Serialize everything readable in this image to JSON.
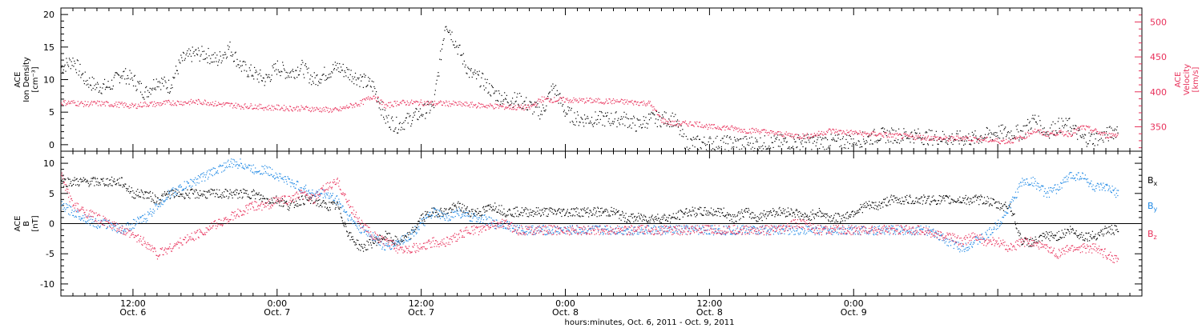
{
  "chart_data": [
    {
      "type": "scatter",
      "panel": "top",
      "ylabel_left": [
        "ACE",
        "Ion Density",
        "[cm⁻³]"
      ],
      "ylabel_right": [
        "ACE",
        "Velocity",
        "[km/s]"
      ],
      "ylim_left": [
        -1,
        21
      ],
      "ylim_right": [
        315,
        520
      ],
      "yticks_left": [
        0,
        5,
        10,
        15,
        20
      ],
      "yticks_right": [
        350,
        400,
        450,
        500
      ],
      "colors": {
        "density": "#000000",
        "velocity": "#e8305a"
      },
      "series": [
        {
          "axis": "left",
          "x_hours": [
            0,
            1,
            2,
            3,
            4,
            5,
            6,
            7,
            8,
            9,
            10,
            11,
            12,
            13,
            14,
            15,
            16,
            17,
            18,
            19,
            20,
            21,
            22,
            23,
            24,
            25,
            26,
            27,
            28,
            29,
            30,
            31,
            32,
            33,
            34,
            35,
            36,
            37,
            38,
            39,
            40,
            41,
            42,
            43,
            44,
            45,
            46,
            47,
            48,
            49,
            50,
            51,
            52,
            53,
            54,
            55,
            56,
            57,
            58,
            59,
            60,
            61,
            62,
            63,
            64,
            65,
            66,
            67,
            68,
            69,
            70,
            71,
            72,
            73,
            74,
            75,
            76,
            77,
            78,
            79,
            80,
            81,
            82,
            83,
            84,
            85,
            86,
            87,
            88
          ],
          "values": [
            12,
            13,
            10,
            9,
            9,
            11,
            10,
            8,
            10,
            9,
            13,
            14,
            14,
            13,
            15,
            12,
            11,
            10,
            12,
            11,
            12,
            10,
            11,
            12,
            11,
            10,
            9,
            4,
            3,
            4,
            5,
            6,
            19,
            15,
            11,
            10,
            8,
            7,
            7,
            6,
            5,
            9,
            5,
            4,
            4,
            4,
            4,
            4,
            3,
            4,
            4,
            4,
            0.3,
            0.3,
            0.3,
            0.3,
            0.3,
            0.3,
            0.3,
            0.3,
            0.5,
            0.5,
            0.5,
            0.5,
            0.5,
            0.5,
            0.8,
            0.9,
            1.5,
            1.5,
            1.5,
            1.5,
            1.2,
            1.2,
            1.0,
            1.0,
            1.0,
            1.5,
            2.0,
            1.8,
            2.0,
            4.0,
            2.0,
            3.0,
            3.0,
            1.0,
            1.0,
            1.5,
            2.5
          ]
        },
        {
          "axis": "right",
          "x_hours": [
            0,
            1,
            2,
            3,
            4,
            5,
            6,
            7,
            8,
            9,
            10,
            11,
            12,
            13,
            14,
            15,
            16,
            17,
            18,
            19,
            20,
            21,
            22,
            23,
            24,
            25,
            26,
            27,
            28,
            29,
            30,
            31,
            32,
            33,
            34,
            35,
            36,
            37,
            38,
            39,
            40,
            41,
            42,
            43,
            44,
            45,
            46,
            47,
            48,
            49,
            50,
            51,
            52,
            53,
            54,
            55,
            56,
            57,
            58,
            59,
            60,
            61,
            62,
            63,
            64,
            65,
            66,
            67,
            68,
            69,
            70,
            71,
            72,
            73,
            74,
            75,
            76,
            77,
            78,
            79,
            80,
            81,
            82,
            83,
            84,
            85,
            86,
            87,
            88
          ],
          "values": [
            385,
            385,
            383,
            384,
            383,
            382,
            380,
            383,
            383,
            385,
            385,
            386,
            386,
            383,
            382,
            380,
            380,
            378,
            378,
            377,
            377,
            376,
            375,
            374,
            380,
            385,
            395,
            380,
            385,
            385,
            385,
            384,
            384,
            383,
            382,
            381,
            380,
            379,
            378,
            378,
            390,
            389,
            389,
            388,
            388,
            387,
            387,
            386,
            385,
            384,
            360,
            355,
            355,
            355,
            350,
            350,
            348,
            345,
            345,
            342,
            340,
            338,
            337,
            340,
            345,
            343,
            342,
            340,
            340,
            338,
            337,
            336,
            335,
            334,
            333,
            335,
            333,
            332,
            330,
            330,
            335,
            345,
            340,
            342,
            340,
            350,
            345,
            338,
            340
          ]
        }
      ]
    },
    {
      "type": "line",
      "panel": "bottom",
      "ylabel": [
        "ACE",
        "B",
        "[nT]"
      ],
      "ylim": [
        -12,
        12
      ],
      "yticks": [
        -10,
        -5,
        0,
        5,
        10
      ],
      "zero_line": true,
      "series": [
        {
          "name": "Bx",
          "color": "#000000",
          "x_hours": [
            0,
            1,
            2,
            3,
            4,
            5,
            6,
            7,
            8,
            9,
            10,
            11,
            12,
            13,
            14,
            15,
            16,
            17,
            18,
            19,
            20,
            21,
            22,
            23,
            24,
            25,
            26,
            27,
            28,
            29,
            30,
            31,
            32,
            33,
            34,
            35,
            36,
            37,
            38,
            39,
            40,
            41,
            42,
            43,
            44,
            45,
            46,
            47,
            48,
            49,
            50,
            51,
            52,
            53,
            54,
            55,
            56,
            57,
            58,
            59,
            60,
            61,
            62,
            63,
            64,
            65,
            66,
            67,
            68,
            69,
            70,
            71,
            72,
            73,
            74,
            75,
            76,
            77,
            78,
            79,
            80,
            81,
            82,
            83,
            84,
            85,
            86,
            87,
            88
          ],
          "values": [
            7,
            7,
            7,
            7,
            7,
            7,
            5,
            5,
            4,
            5,
            5,
            5,
            5,
            5,
            5,
            5,
            5,
            4,
            4,
            3,
            4,
            4,
            3,
            3,
            -2,
            -4,
            -3,
            -2,
            -3,
            -2,
            1,
            2,
            2,
            3,
            2,
            2,
            3,
            2,
            2,
            2,
            2,
            2,
            2,
            2,
            2,
            2,
            2,
            1,
            1,
            1,
            1,
            1,
            2,
            2,
            2,
            2,
            1,
            2,
            1,
            2,
            2,
            2,
            1,
            2,
            1,
            1,
            2,
            3,
            3,
            4,
            4,
            4,
            4,
            4,
            4,
            4,
            4,
            4,
            3,
            3,
            -3,
            -3,
            -2,
            -2,
            -1,
            -2,
            -2,
            -1,
            -1
          ]
        },
        {
          "name": "By",
          "color": "#1e88e5",
          "x_hours": [
            0,
            1,
            2,
            3,
            4,
            5,
            6,
            7,
            8,
            9,
            10,
            11,
            12,
            13,
            14,
            15,
            16,
            17,
            18,
            19,
            20,
            21,
            22,
            23,
            24,
            25,
            26,
            27,
            28,
            29,
            30,
            31,
            32,
            33,
            34,
            35,
            36,
            37,
            38,
            39,
            40,
            41,
            42,
            43,
            44,
            45,
            46,
            47,
            48,
            49,
            50,
            51,
            52,
            53,
            54,
            55,
            56,
            57,
            58,
            59,
            60,
            61,
            62,
            63,
            64,
            65,
            66,
            67,
            68,
            69,
            70,
            71,
            72,
            73,
            74,
            75,
            76,
            77,
            78,
            79,
            80,
            81,
            82,
            83,
            84,
            85,
            86,
            87,
            88
          ],
          "values": [
            3,
            2,
            1,
            0,
            0,
            -1,
            0,
            1,
            3,
            5,
            6,
            7,
            8,
            9,
            10,
            10,
            9,
            9,
            8,
            7,
            6,
            5,
            5,
            4,
            1,
            -1,
            -2,
            -4,
            -3,
            -2,
            0,
            2,
            1,
            2,
            1,
            1,
            0,
            0,
            -1,
            -1,
            -1,
            -1,
            -1,
            -1,
            -1,
            -1,
            -1,
            -1,
            -1,
            -1,
            -1,
            -1,
            -1,
            -1,
            -1,
            -1,
            -1,
            -1,
            -1,
            -1,
            -1,
            -1,
            -1,
            -1,
            -1,
            -1,
            -1,
            -1,
            -1,
            -1,
            -1,
            -1,
            -1,
            -2,
            -3,
            -4,
            -3,
            -2,
            0,
            3,
            7,
            7,
            5,
            6,
            8,
            8,
            6,
            6,
            5
          ]
        },
        {
          "name": "Bz",
          "color": "#e8305a",
          "x_hours": [
            0,
            1,
            2,
            3,
            4,
            5,
            6,
            7,
            8,
            9,
            10,
            11,
            12,
            13,
            14,
            15,
            16,
            17,
            18,
            19,
            20,
            21,
            22,
            23,
            24,
            25,
            26,
            27,
            28,
            29,
            30,
            31,
            32,
            33,
            34,
            35,
            36,
            37,
            38,
            39,
            40,
            41,
            42,
            43,
            44,
            45,
            46,
            47,
            48,
            49,
            50,
            51,
            52,
            53,
            54,
            55,
            56,
            57,
            58,
            59,
            60,
            61,
            62,
            63,
            64,
            65,
            66,
            67,
            68,
            69,
            70,
            71,
            72,
            73,
            74,
            75,
            76,
            77,
            78,
            79,
            80,
            81,
            82,
            83,
            84,
            85,
            86,
            87,
            88
          ],
          "values": [
            8,
            3,
            2,
            1,
            0,
            -1,
            -2,
            -3,
            -5,
            -4,
            -3,
            -2,
            -1,
            0,
            1,
            2,
            3,
            3,
            4,
            4,
            5,
            4,
            6,
            7,
            3,
            0,
            -2,
            -3,
            -4,
            -4,
            -4,
            -3,
            -3,
            -2,
            -1,
            -1,
            0,
            0,
            -1,
            -1,
            -1,
            -1,
            -1,
            -1,
            -1,
            -1,
            -1,
            -1,
            -1,
            -1,
            -1,
            -1,
            -1,
            -1,
            -1,
            -1,
            -1,
            -1,
            -1,
            -1,
            -1,
            0,
            0,
            -1,
            -1,
            -1,
            -1,
            -1,
            -1,
            -1,
            -1,
            -1,
            -1,
            -2,
            -2,
            -3,
            -2,
            -3,
            -3,
            -4,
            -3,
            -3,
            -4,
            -5,
            -4,
            -4,
            -4,
            -5,
            -6
          ]
        }
      ],
      "legend": [
        {
          "label": "B",
          "sub": "x",
          "color": "#000000"
        },
        {
          "label": "B",
          "sub": "y",
          "color": "#1e88e5"
        },
        {
          "label": "B",
          "sub": "z",
          "color": "#e8305a"
        }
      ]
    }
  ],
  "x_axis": {
    "ticks": [
      {
        "hour": 6,
        "line1": "12:00",
        "line2": "Oct. 6"
      },
      {
        "hour": 18,
        "line1": "0:00",
        "line2": "Oct. 7"
      },
      {
        "hour": 30,
        "line1": "12:00",
        "line2": "Oct. 7"
      },
      {
        "hour": 42,
        "line1": "0:00",
        "line2": "Oct. 8"
      },
      {
        "hour": 54,
        "line1": "12:00",
        "line2": "Oct. 8"
      },
      {
        "hour": 66,
        "line1": "0:00",
        "line2": "Oct. 9"
      }
    ],
    "xlim_hours": [
      0,
      90
    ],
    "xlabel": "hours:minutes, Oct.  6, 2011 - Oct.  9, 2011"
  }
}
